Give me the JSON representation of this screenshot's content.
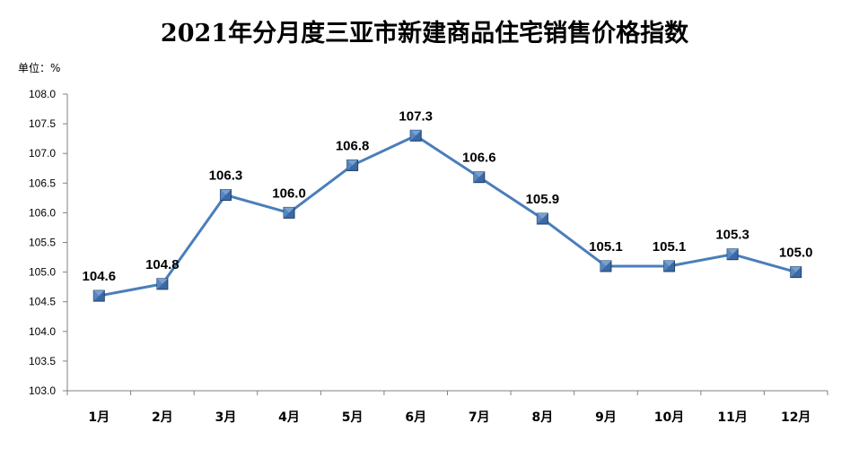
{
  "title": "2021年分月度三亚市新建商品住宅销售价格指数",
  "unit_label": "单位：%",
  "chart_data": {
    "type": "line",
    "title": "2021年分月度三亚市新建商品住宅销售价格指数",
    "categories": [
      "1月",
      "2月",
      "3月",
      "4月",
      "5月",
      "6月",
      "7月",
      "8月",
      "9月",
      "10月",
      "11月",
      "12月"
    ],
    "values": [
      104.6,
      104.8,
      106.3,
      106.0,
      106.8,
      107.3,
      106.6,
      105.9,
      105.1,
      105.1,
      105.3,
      105.0
    ],
    "value_labels": [
      "104.6",
      "104.8",
      "106.3",
      "106.0",
      "106.8",
      "107.3",
      "106.6",
      "105.9",
      "105.1",
      "105.1",
      "105.3",
      "105.0"
    ],
    "ylim": [
      103.0,
      108.0
    ],
    "yticks": [
      "103.0",
      "103.5",
      "104.0",
      "104.5",
      "105.0",
      "105.5",
      "106.0",
      "106.5",
      "107.0",
      "107.5",
      "108.0"
    ],
    "line_color": "#4a7ebb",
    "marker_color": "#3a6aa5",
    "grid": false,
    "legend": false
  }
}
